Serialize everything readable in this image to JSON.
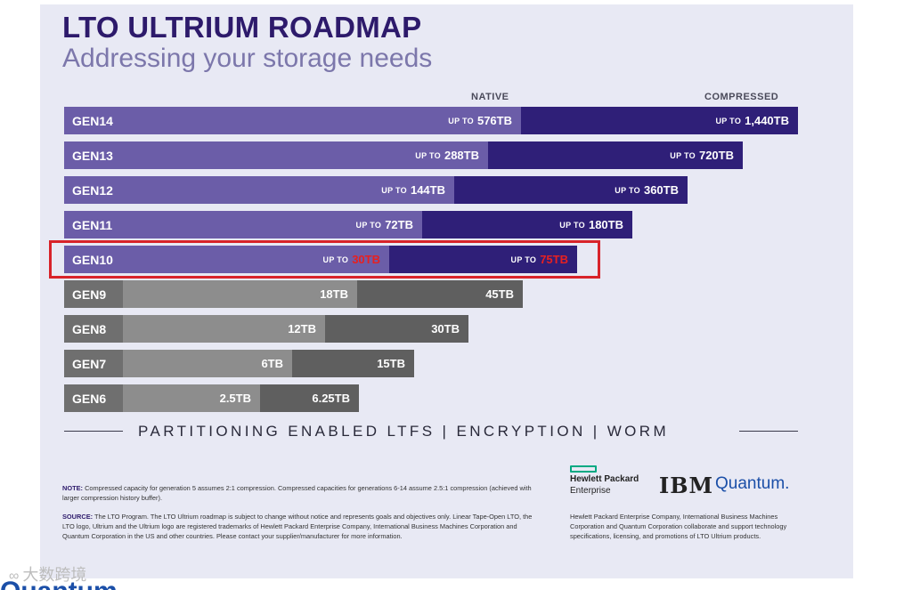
{
  "header": {
    "title": "LTO ULTRIUM ROADMAP",
    "subtitle": "Addressing your storage needs"
  },
  "chart_data": {
    "type": "bar",
    "orientation": "horizontal",
    "stacked": true,
    "unit": "TB",
    "column_labels": {
      "native": "NATIVE",
      "compressed": "COMPRESSED"
    },
    "categories": [
      "GEN14",
      "GEN13",
      "GEN12",
      "GEN11",
      "GEN10",
      "GEN9",
      "GEN8",
      "GEN7",
      "GEN6"
    ],
    "series": [
      {
        "name": "NATIVE",
        "values": [
          576,
          288,
          144,
          72,
          30,
          18,
          12,
          6,
          2.5
        ]
      },
      {
        "name": "COMPRESSED",
        "values": [
          1440,
          720,
          360,
          180,
          75,
          45,
          30,
          15,
          6.25
        ]
      }
    ],
    "rows": [
      {
        "gen": "GEN14",
        "native": "576TB",
        "compressed": "1,440TB",
        "prefix": "UP TO",
        "style": "future"
      },
      {
        "gen": "GEN13",
        "native": "288TB",
        "compressed": "720TB",
        "prefix": "UP TO",
        "style": "future"
      },
      {
        "gen": "GEN12",
        "native": "144TB",
        "compressed": "360TB",
        "prefix": "UP TO",
        "style": "future"
      },
      {
        "gen": "GEN11",
        "native": "72TB",
        "compressed": "180TB",
        "prefix": "UP TO",
        "style": "future"
      },
      {
        "gen": "GEN10",
        "native": "30TB",
        "compressed": "75TB",
        "prefix": "UP TO",
        "style": "future",
        "highlighted": true
      },
      {
        "gen": "GEN9",
        "native": "18TB",
        "compressed": "45TB",
        "prefix": "",
        "style": "current"
      },
      {
        "gen": "GEN8",
        "native": "12TB",
        "compressed": "30TB",
        "prefix": "",
        "style": "current"
      },
      {
        "gen": "GEN7",
        "native": "6TB",
        "compressed": "15TB",
        "prefix": "",
        "style": "current"
      },
      {
        "gen": "GEN6",
        "native": "2.5TB",
        "compressed": "6.25TB",
        "prefix": "",
        "style": "current"
      }
    ],
    "colors": {
      "future_native": "#6b5da8",
      "future_compressed": "#2f1f78",
      "current_native": "#8d8d8d",
      "current_compressed": "#5f5f5f",
      "highlight": "#d8232a"
    }
  },
  "features": "PARTITIONING  ENABLED  LTFS  |  ENCRYPTION  |  WORM",
  "notes": {
    "note_label": "NOTE:",
    "note_text": "Compressed capacity for generation 5 assumes 2:1 compression. Compressed capacities for generations 6-14 assume 2.5:1 compression (achieved with larger compression history buffer).",
    "source_label": "SOURCE:",
    "source_text": "The LTO Program. The LTO Ultrium roadmap is subject to change without notice and represents goals and objectives only. Linear Tape-Open LTO, the LTO logo, Ultrium and the Ultrium logo are registered trademarks of Hewlett Packard Enterprise Company, International Business Machines Corporation and Quantum Corporation in the US and other countries. Please contact your supplier/manufacturer for more information."
  },
  "logos": {
    "hpe_line1": "Hewlett Packard",
    "hpe_line2": "Enterprise",
    "ibm": "IBM",
    "quantum": "Quantum."
  },
  "right_note": "Hewlett Packard Enterprise Company, International Business Machines Corporation and Quantum Corporation collaborate and support technology specifications, licensing, and promotions of LTO Ultrium products.",
  "watermark": "大数跨境",
  "bottom_logo": "Quantum"
}
